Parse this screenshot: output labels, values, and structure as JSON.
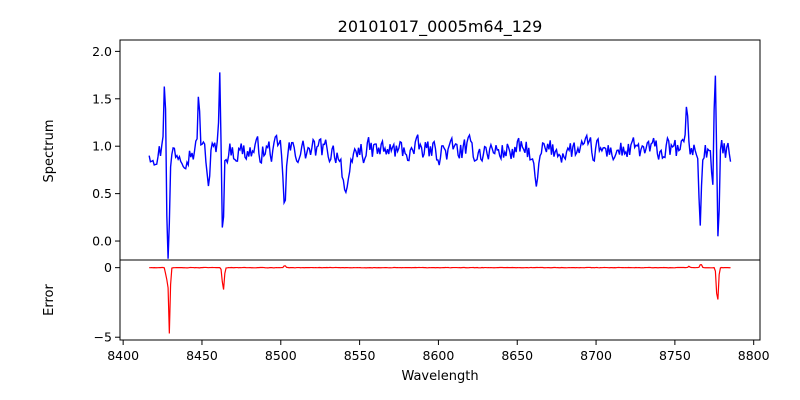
{
  "chart_data": {
    "title": "20101017_0005m64_129",
    "xlabel": "Wavelength",
    "x_ticks": [
      8400,
      8450,
      8500,
      8550,
      8600,
      8650,
      8700,
      8750,
      8800
    ],
    "xlim": [
      8398,
      8804
    ],
    "panels": [
      {
        "id": "spectrum",
        "type": "line",
        "ylabel": "Spectrum",
        "ylim": [
          -0.2,
          2.12
        ],
        "y_ticks": [
          "0.0",
          "0.5",
          "1.0",
          "1.5",
          "2.0"
        ],
        "color": "#0000ff",
        "x_start": 8416.5,
        "x_step": 0.8,
        "baseline": 0.95,
        "noise_amplitude": 0.11,
        "features": [
          {
            "x": 8426.5,
            "amp": 0.9,
            "width": 0.7
          },
          {
            "x": 8428.5,
            "amp": -1.15,
            "width": 0.9
          },
          {
            "x": 8448.0,
            "amp": 0.58,
            "width": 0.7
          },
          {
            "x": 8454.0,
            "amp": -0.35,
            "width": 0.8
          },
          {
            "x": 8461.5,
            "amp": 1.06,
            "width": 0.6
          },
          {
            "x": 8463.0,
            "amp": -0.88,
            "width": 0.8
          },
          {
            "x": 8502.5,
            "amp": -0.65,
            "width": 0.8
          },
          {
            "x": 8542.0,
            "amp": -0.48,
            "width": 2.2
          },
          {
            "x": 8662.0,
            "amp": -0.38,
            "width": 1.6
          },
          {
            "x": 8757.5,
            "amp": 0.58,
            "width": 0.7
          },
          {
            "x": 8766.0,
            "amp": -0.68,
            "width": 0.8
          },
          {
            "x": 8774.0,
            "amp": -0.45,
            "width": 0.6
          },
          {
            "x": 8775.5,
            "amp": 0.75,
            "width": 0.6
          },
          {
            "x": 8777.5,
            "amp": -0.9,
            "width": 0.6
          }
        ]
      },
      {
        "id": "error",
        "type": "line",
        "ylabel": "Error",
        "ylim": [
          -5.2,
          0.55
        ],
        "y_ticks": [
          "0",
          "−5"
        ],
        "y_tick_values": [
          0,
          -5
        ],
        "color": "#ff0000",
        "x_start": 8416.5,
        "x_step": 0.8,
        "baseline": 0.0,
        "noise_amplitude": 0.02,
        "features": [
          {
            "x": 8427.5,
            "amp": -0.9,
            "width": 0.5
          },
          {
            "x": 8429.3,
            "amp": -4.75,
            "width": 0.5
          },
          {
            "x": 8430.0,
            "amp": 0.12,
            "width": 0.4
          },
          {
            "x": 8463.5,
            "amp": -1.65,
            "width": 0.6
          },
          {
            "x": 8502.5,
            "amp": 0.18,
            "width": 0.5
          },
          {
            "x": 8759.0,
            "amp": 0.1,
            "width": 0.5
          },
          {
            "x": 8766.5,
            "amp": 0.28,
            "width": 0.5
          },
          {
            "x": 8777.0,
            "amp": -2.6,
            "width": 0.6
          }
        ]
      }
    ]
  }
}
